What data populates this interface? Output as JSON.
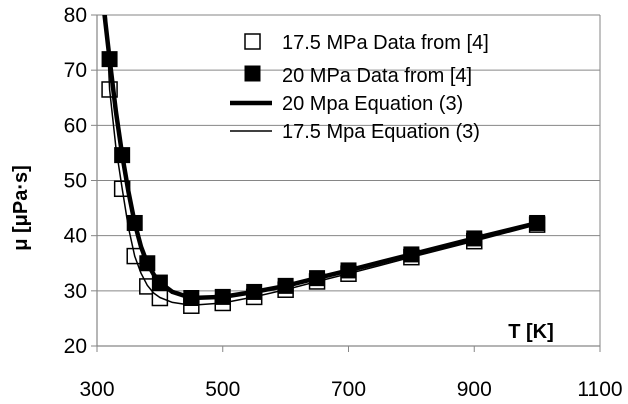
{
  "chart_data": {
    "type": "scatter",
    "xlabel": "T [K]",
    "ylabel": "μ [μPa·s]",
    "xlim": [
      300,
      1100
    ],
    "ylim": [
      20,
      80
    ],
    "x_ticks": [
      300,
      500,
      700,
      900,
      1100
    ],
    "y_ticks": [
      20,
      30,
      40,
      50,
      60,
      70,
      80
    ],
    "grid": "horizontal",
    "legend_position": "top-right",
    "colors": {
      "axis": "#000000",
      "grid": "#868686",
      "series": "#000000"
    },
    "series": [
      {
        "name": "17.5 MPa Data from [4]",
        "marker": "hollow-square",
        "x": [
          320,
          340,
          360,
          380,
          400,
          450,
          500,
          550,
          600,
          650,
          700,
          800,
          900,
          1000
        ],
        "y": [
          66.5,
          48.5,
          36.3,
          30.8,
          28.7,
          27.3,
          27.8,
          28.9,
          30.2,
          31.7,
          33.1,
          36.1,
          39.0,
          42.0
        ]
      },
      {
        "name": "20 MPa Data from [4]",
        "marker": "filled-square",
        "x": [
          320,
          340,
          360,
          380,
          400,
          450,
          500,
          550,
          600,
          650,
          700,
          800,
          900,
          1000
        ],
        "y": [
          72.0,
          54.6,
          42.3,
          35.0,
          31.5,
          28.7,
          28.9,
          29.8,
          30.9,
          32.3,
          33.7,
          36.6,
          39.5,
          42.3
        ]
      },
      {
        "name": "20 Mpa Equation (3)",
        "style": "thick-line",
        "x": [
          310,
          320,
          330,
          340,
          350,
          360,
          370,
          380,
          390,
          400,
          420,
          450,
          500,
          550,
          600,
          650,
          700,
          800,
          900,
          1000
        ],
        "y": [
          82.0,
          72.0,
          62.5,
          54.6,
          48.0,
          42.3,
          38.0,
          35.0,
          33.0,
          31.5,
          29.8,
          28.7,
          28.9,
          29.8,
          30.9,
          32.3,
          33.7,
          36.6,
          39.5,
          42.3
        ]
      },
      {
        "name": "17.5 Mpa Equation (3)",
        "style": "thin-line",
        "x": [
          314,
          320,
          330,
          340,
          350,
          360,
          370,
          380,
          390,
          400,
          420,
          450,
          500,
          550,
          600,
          650,
          700,
          800,
          900,
          1000
        ],
        "y": [
          82.0,
          66.5,
          56.0,
          48.5,
          41.5,
          36.3,
          33.2,
          31.0,
          29.6,
          28.8,
          27.9,
          27.4,
          27.8,
          28.9,
          30.2,
          31.7,
          33.1,
          36.1,
          39.0,
          42.0
        ]
      }
    ]
  }
}
